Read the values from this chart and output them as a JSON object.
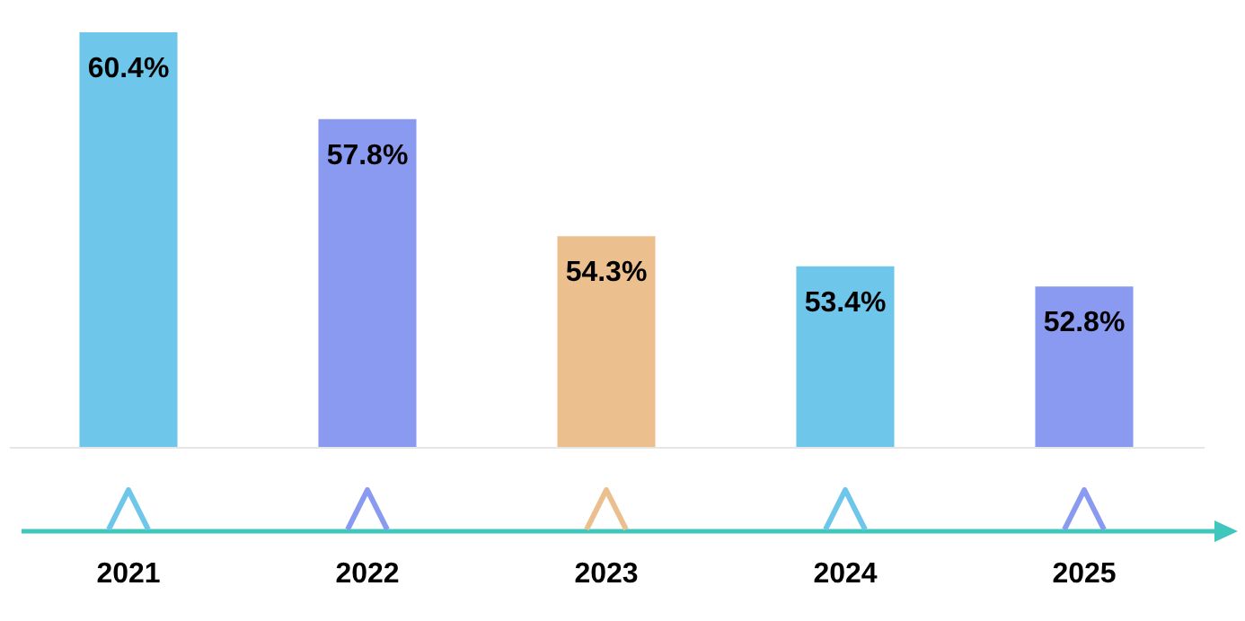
{
  "chart_data": {
    "type": "bar",
    "categories": [
      "2021",
      "2022",
      "2023",
      "2024",
      "2025"
    ],
    "values": [
      60.4,
      57.8,
      54.3,
      53.4,
      52.8
    ],
    "colors": [
      "#6ec6ea",
      "#8a9af0",
      "#ecbf8e",
      "#6ec6ea",
      "#8a9af0"
    ],
    "value_labels": [
      "60.4%",
      "57.8%",
      "54.3%",
      "53.4%",
      "52.8%"
    ],
    "ylim": [
      48,
      60.4
    ],
    "tick_labels": "x"
  }
}
